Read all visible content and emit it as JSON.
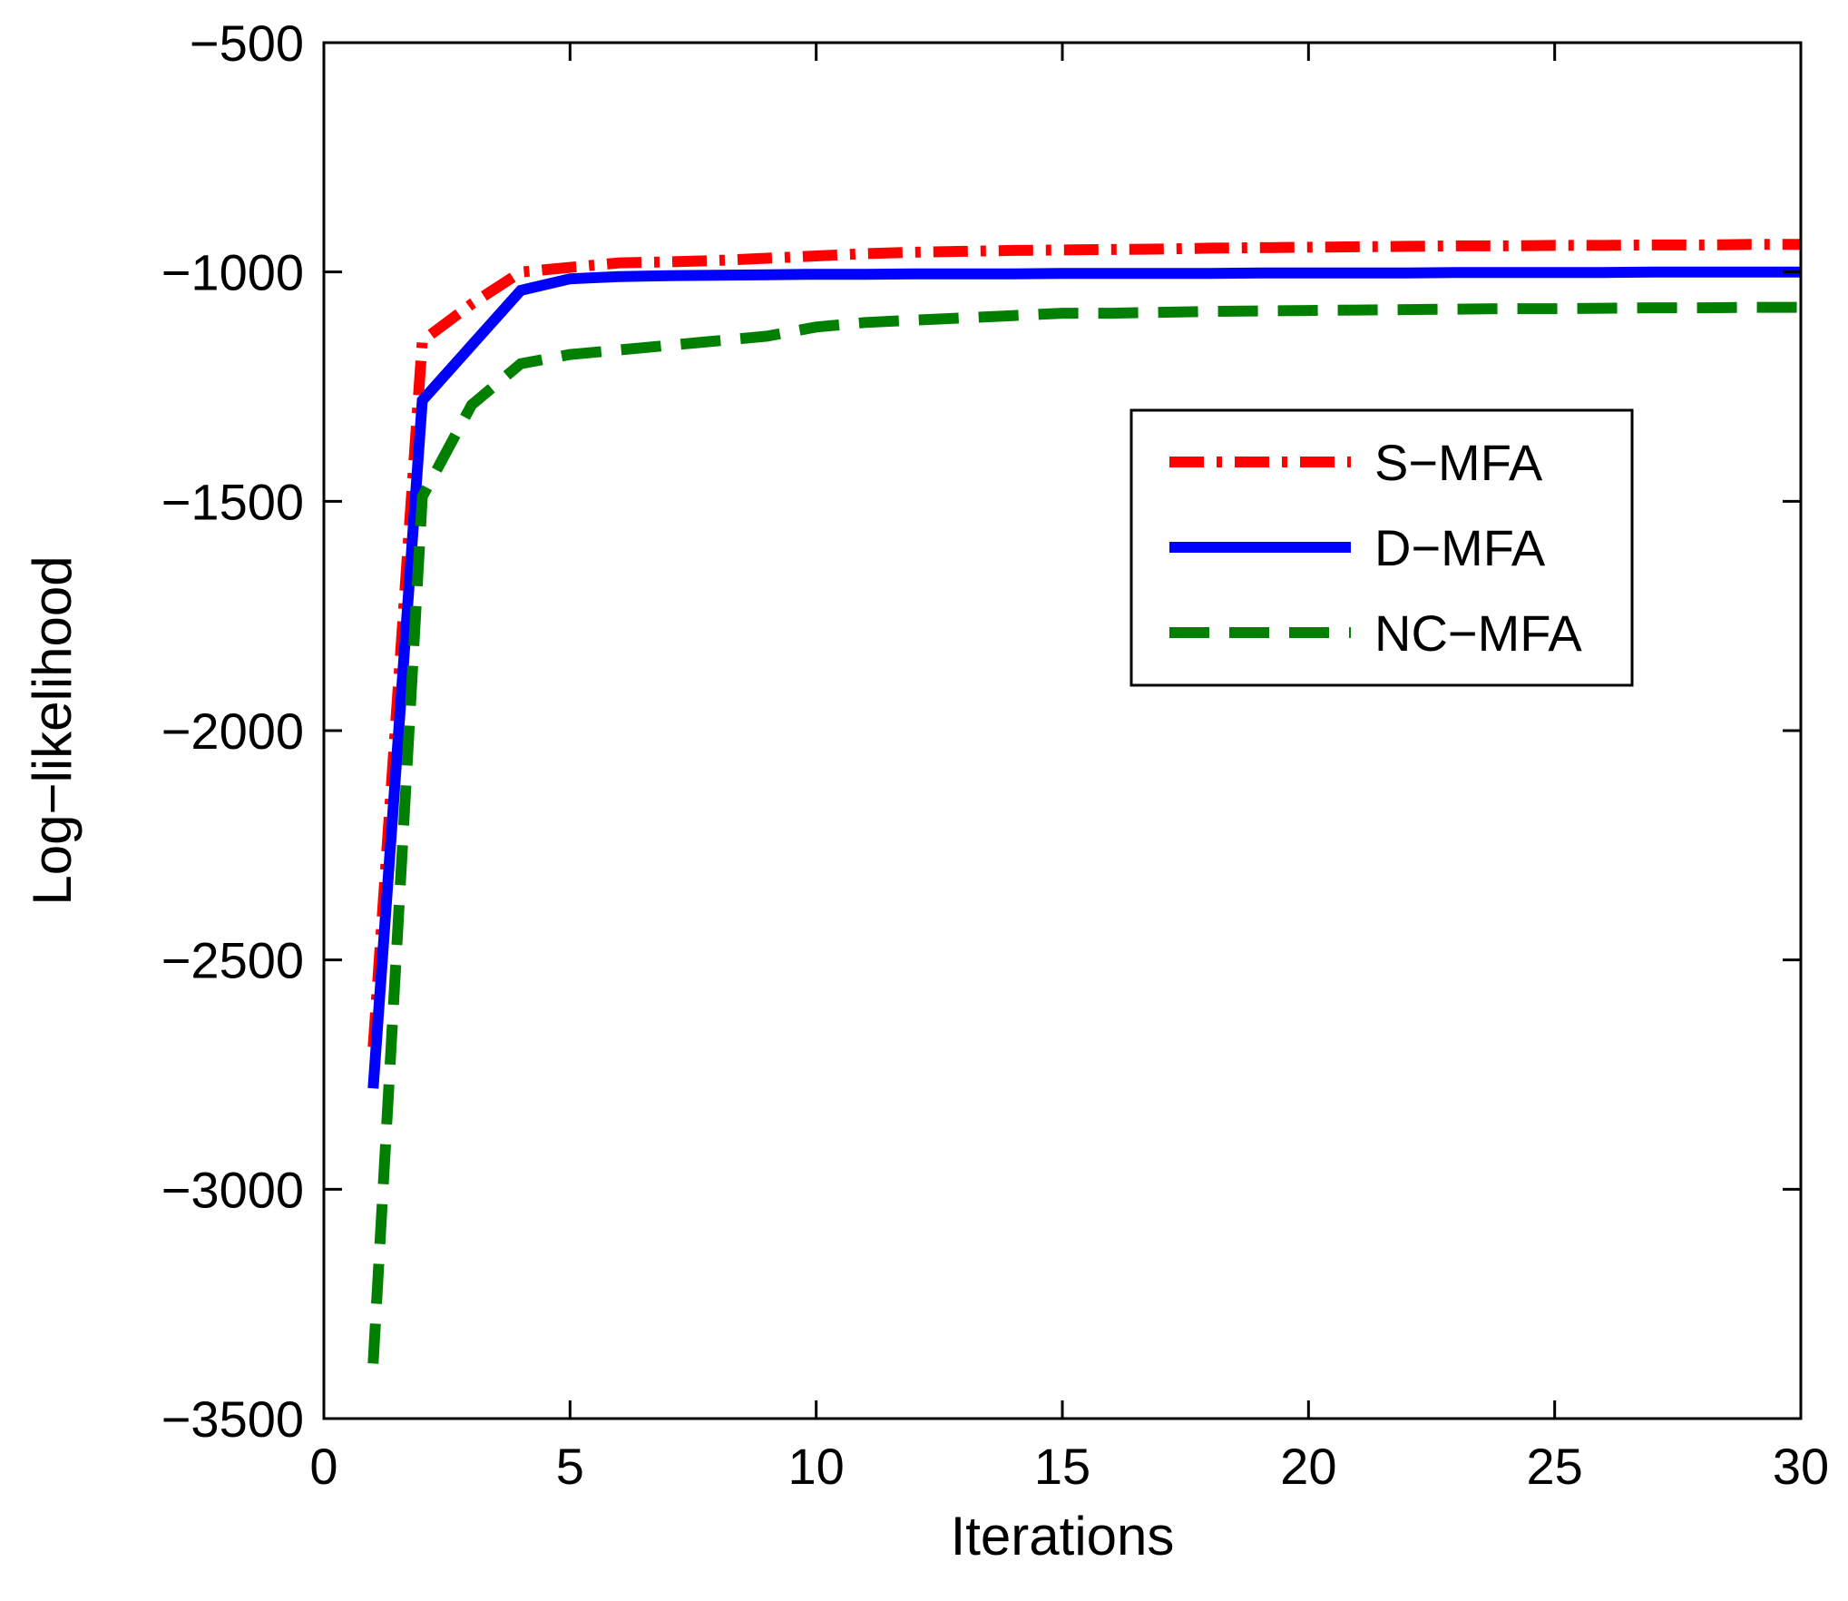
{
  "chart_data": {
    "type": "line",
    "xlabel": "Iterations",
    "ylabel": "Log−likelihood",
    "xlim": [
      0,
      30
    ],
    "ylim": [
      -3500,
      -500
    ],
    "xticks": [
      0,
      5,
      10,
      15,
      20,
      25,
      30
    ],
    "yticks": [
      -3500,
      -3000,
      -2500,
      -2000,
      -1500,
      -1000,
      -500
    ],
    "xtick_labels": [
      "0",
      "5",
      "10",
      "15",
      "20",
      "25",
      "30"
    ],
    "ytick_labels": [
      "−3500",
      "−3000",
      "−2500",
      "−2000",
      "−1500",
      "−1000",
      "−500"
    ],
    "grid": false,
    "legend_position": "upper-right",
    "x": [
      1,
      2,
      3,
      4,
      5,
      6,
      7,
      8,
      9,
      10,
      11,
      12,
      13,
      14,
      15,
      16,
      17,
      18,
      19,
      20,
      21,
      22,
      23,
      24,
      25,
      26,
      27,
      28,
      29,
      30
    ],
    "series": [
      {
        "name": "S−MFA",
        "color": "#ff0000",
        "style": "dashdot",
        "values": [
          -2690,
          -1150,
          -1070,
          -1000,
          -990,
          -980,
          -978,
          -975,
          -970,
          -965,
          -960,
          -957,
          -955,
          -953,
          -952,
          -951,
          -950,
          -948,
          -947,
          -946,
          -945,
          -944,
          -943,
          -943,
          -942,
          -942,
          -941,
          -941,
          -940,
          -940
        ]
      },
      {
        "name": "D−MFA",
        "color": "#0000ff",
        "style": "solid",
        "values": [
          -2780,
          -1280,
          -1160,
          -1040,
          -1015,
          -1010,
          -1008,
          -1007,
          -1006,
          -1005,
          -1005,
          -1004,
          -1004,
          -1004,
          -1003,
          -1003,
          -1003,
          -1003,
          -1002,
          -1002,
          -1002,
          -1002,
          -1001,
          -1001,
          -1001,
          -1001,
          -1000,
          -1000,
          -1000,
          -1000
        ]
      },
      {
        "name": "NC−MFA",
        "color": "#007f00",
        "style": "dashed",
        "values": [
          -3380,
          -1490,
          -1290,
          -1200,
          -1180,
          -1170,
          -1160,
          -1150,
          -1140,
          -1120,
          -1110,
          -1105,
          -1100,
          -1095,
          -1090,
          -1090,
          -1088,
          -1086,
          -1085,
          -1084,
          -1083,
          -1082,
          -1081,
          -1080,
          -1080,
          -1079,
          -1078,
          -1078,
          -1077,
          -1077
        ]
      }
    ]
  }
}
